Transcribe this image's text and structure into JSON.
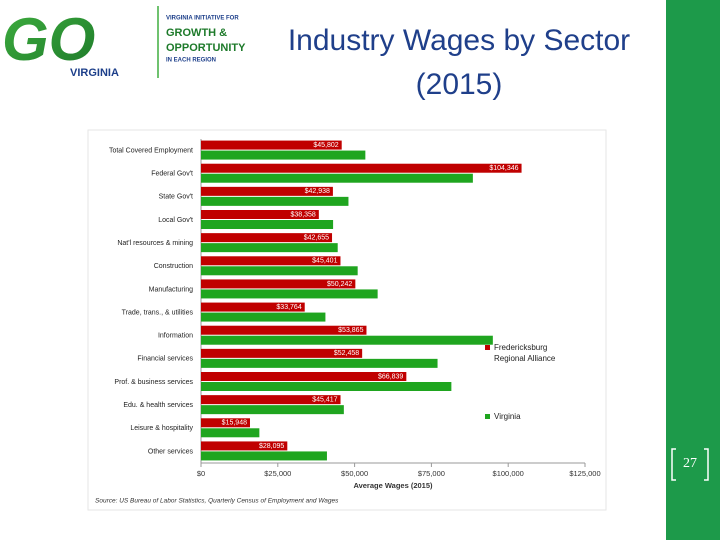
{
  "slide": {
    "logo": {
      "mark": "GO",
      "state": "VIRGINIA",
      "line1": "VIRGINIA INITIATIVE FOR",
      "line2": "GROWTH &",
      "line3": "OPPORTUNITY",
      "line4": "IN EACH REGION"
    },
    "title": [
      "Industry Wages by Sector",
      "(2015)"
    ],
    "page_number": "27"
  },
  "chart_data": {
    "type": "hbar",
    "categories": [
      "Total Covered Employment",
      "Federal Gov't",
      "State Gov't",
      "Local Gov't",
      "Nat'l resources & mining",
      "Construction",
      "Manufacturing",
      "Trade, trans., & utilities",
      "Information",
      "Financial services",
      "Prof. & business services",
      "Edu. & health services",
      "Leisure & hospitality",
      "Other services"
    ],
    "series": [
      {
        "name": "Fredericksburg Regional Alliance",
        "color": "#c00000",
        "values": [
          45802,
          104346,
          42938,
          38358,
          42655,
          45401,
          50242,
          33764,
          53865,
          52458,
          66839,
          45417,
          15948,
          28095
        ],
        "value_labels": [
          "$45,802",
          "$104,346",
          "$42,938",
          "$38,358",
          "$42,655",
          "$45,401",
          "$50,242",
          "$33,764",
          "$53,865",
          "$52,458",
          "$66,839",
          "$45,417",
          "$15,948",
          "$28,095"
        ]
      },
      {
        "name": "Virginia",
        "color": "#1fa51f",
        "values": [
          53500,
          88500,
          48000,
          43000,
          44500,
          51000,
          57500,
          40500,
          95000,
          77000,
          81500,
          46500,
          19000,
          41000
        ]
      }
    ],
    "xlim": [
      0,
      125000
    ],
    "xticks": [
      {
        "value": 0,
        "label": "$0"
      },
      {
        "value": 25000,
        "label": "$25,000"
      },
      {
        "value": 50000,
        "label": "$50,000"
      },
      {
        "value": 75000,
        "label": "$75,000"
      },
      {
        "value": 100000,
        "label": "$100,000"
      },
      {
        "value": 125000,
        "label": "$125,000"
      }
    ],
    "xlabel": "Average Wages (2015)",
    "source": "Source: US Bureau of Labor Statistics, Quarterly Census of Employment and Wages",
    "grid": false,
    "legend": "right"
  }
}
